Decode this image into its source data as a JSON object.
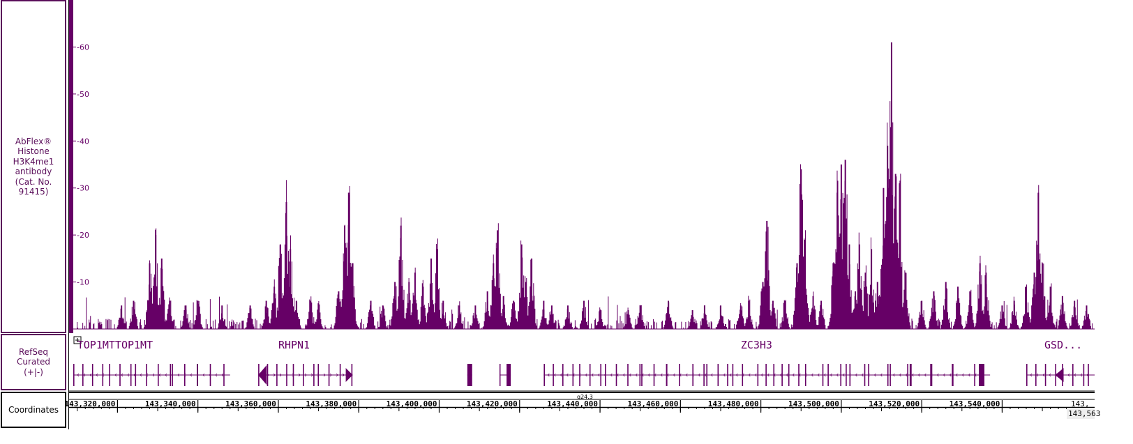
{
  "tracks": {
    "signal_label": "AbFlex® Histone H3K4me1 antibody (Cat. No. 91415)",
    "refseq_label": "RefSeq Curated (+|-)",
    "coords_label": "Coordinates"
  },
  "chart_data": {
    "type": "area",
    "title": "",
    "xlabel": "",
    "ylabel": "",
    "ylim": [
      0,
      70
    ],
    "y_ticks": [
      "10",
      "20",
      "30",
      "40",
      "50",
      "60"
    ],
    "xlim": [
      143309000,
      143563000
    ],
    "x_ticks": [
      "143,320,000",
      "143,340,000",
      "143,360,000",
      "143,380,000",
      "143,400,000",
      "143,420,000",
      "143,440,000",
      "143,460,000",
      "143,480,000",
      "143,500,000",
      "143,520,000",
      "143,540,000"
    ],
    "x_tick_values": [
      143320000,
      143340000,
      143360000,
      143380000,
      143400000,
      143420000,
      143440000,
      143460000,
      143480000,
      143500000,
      143520000,
      143540000
    ],
    "right_edge_label": "143,",
    "cursor_label": "143,563",
    "band_label": "q24.3",
    "color": "#660066",
    "peaks": [
      {
        "pos": 143321000,
        "h": 5
      },
      {
        "pos": 143324000,
        "h": 6
      },
      {
        "pos": 143328000,
        "h": 14
      },
      {
        "pos": 143329500,
        "h": 20
      },
      {
        "pos": 143331000,
        "h": 15
      },
      {
        "pos": 143333000,
        "h": 6
      },
      {
        "pos": 143337000,
        "h": 5
      },
      {
        "pos": 143340000,
        "h": 6
      },
      {
        "pos": 143346000,
        "h": 5
      },
      {
        "pos": 143353000,
        "h": 5
      },
      {
        "pos": 143357000,
        "h": 6
      },
      {
        "pos": 143359000,
        "h": 9
      },
      {
        "pos": 143360500,
        "h": 18
      },
      {
        "pos": 143362000,
        "h": 27
      },
      {
        "pos": 143363000,
        "h": 17
      },
      {
        "pos": 143364500,
        "h": 6
      },
      {
        "pos": 143368000,
        "h": 6
      },
      {
        "pos": 143370000,
        "h": 5
      },
      {
        "pos": 143375000,
        "h": 8
      },
      {
        "pos": 143376500,
        "h": 22
      },
      {
        "pos": 143377500,
        "h": 29
      },
      {
        "pos": 143378500,
        "h": 14
      },
      {
        "pos": 143383000,
        "h": 6
      },
      {
        "pos": 143386000,
        "h": 5
      },
      {
        "pos": 143389000,
        "h": 10
      },
      {
        "pos": 143390500,
        "h": 22
      },
      {
        "pos": 143392500,
        "h": 10
      },
      {
        "pos": 143394000,
        "h": 12
      },
      {
        "pos": 143396000,
        "h": 9
      },
      {
        "pos": 143398000,
        "h": 15
      },
      {
        "pos": 143399500,
        "h": 17
      },
      {
        "pos": 143401000,
        "h": 6
      },
      {
        "pos": 143405000,
        "h": 5
      },
      {
        "pos": 143409000,
        "h": 5
      },
      {
        "pos": 143412000,
        "h": 8
      },
      {
        "pos": 143413500,
        "h": 14
      },
      {
        "pos": 143414500,
        "h": 21
      },
      {
        "pos": 143416000,
        "h": 7
      },
      {
        "pos": 143418500,
        "h": 6
      },
      {
        "pos": 143420500,
        "h": 18
      },
      {
        "pos": 143421500,
        "h": 10
      },
      {
        "pos": 143423000,
        "h": 15
      },
      {
        "pos": 143426000,
        "h": 6
      },
      {
        "pos": 143428000,
        "h": 5
      },
      {
        "pos": 143432000,
        "h": 5
      },
      {
        "pos": 143436000,
        "h": 6
      },
      {
        "pos": 143440000,
        "h": 4
      },
      {
        "pos": 143447000,
        "h": 4
      },
      {
        "pos": 143450000,
        "h": 5
      },
      {
        "pos": 143457000,
        "h": 6
      },
      {
        "pos": 143463000,
        "h": 4
      },
      {
        "pos": 143466000,
        "h": 5
      },
      {
        "pos": 143470000,
        "h": 5
      },
      {
        "pos": 143475000,
        "h": 5
      },
      {
        "pos": 143477000,
        "h": 6
      },
      {
        "pos": 143480500,
        "h": 10
      },
      {
        "pos": 143481500,
        "h": 23
      },
      {
        "pos": 143483000,
        "h": 6
      },
      {
        "pos": 143486000,
        "h": 6
      },
      {
        "pos": 143489000,
        "h": 14
      },
      {
        "pos": 143490000,
        "h": 34
      },
      {
        "pos": 143491000,
        "h": 19
      },
      {
        "pos": 143493000,
        "h": 7
      },
      {
        "pos": 143495000,
        "h": 6
      },
      {
        "pos": 143498000,
        "h": 14
      },
      {
        "pos": 143499000,
        "h": 29
      },
      {
        "pos": 143500000,
        "h": 35
      },
      {
        "pos": 143501000,
        "h": 36
      },
      {
        "pos": 143502000,
        "h": 18
      },
      {
        "pos": 143503500,
        "h": 8
      },
      {
        "pos": 143504500,
        "h": 18
      },
      {
        "pos": 143506000,
        "h": 12
      },
      {
        "pos": 143507500,
        "h": 17
      },
      {
        "pos": 143509000,
        "h": 10
      },
      {
        "pos": 143510500,
        "h": 30
      },
      {
        "pos": 143511500,
        "h": 39
      },
      {
        "pos": 143512500,
        "h": 61
      },
      {
        "pos": 143513500,
        "h": 33
      },
      {
        "pos": 143514500,
        "h": 31
      },
      {
        "pos": 143516000,
        "h": 12
      },
      {
        "pos": 143520000,
        "h": 6
      },
      {
        "pos": 143523000,
        "h": 8
      },
      {
        "pos": 143526000,
        "h": 10
      },
      {
        "pos": 143529000,
        "h": 9
      },
      {
        "pos": 143532000,
        "h": 8
      },
      {
        "pos": 143534500,
        "h": 14
      },
      {
        "pos": 143536000,
        "h": 12
      },
      {
        "pos": 143540000,
        "h": 5
      },
      {
        "pos": 143543000,
        "h": 6
      },
      {
        "pos": 143546000,
        "h": 9
      },
      {
        "pos": 143548000,
        "h": 12
      },
      {
        "pos": 143549000,
        "h": 29
      },
      {
        "pos": 143550000,
        "h": 14
      },
      {
        "pos": 143552000,
        "h": 9
      },
      {
        "pos": 143555000,
        "h": 7
      },
      {
        "pos": 143558000,
        "h": 6
      },
      {
        "pos": 143561000,
        "h": 5
      }
    ]
  },
  "genes": [
    {
      "name": "TOP1MTTOP1MT",
      "start": 143309000,
      "end": 143348000,
      "label_pos": 143310000,
      "strand": "-"
    },
    {
      "name": "RHPN1",
      "start": 143355000,
      "end": 143378500,
      "label_pos": 143360000,
      "strand": "+"
    },
    {
      "name": "ZC3H3",
      "start": 143426000,
      "end": 143537000,
      "label_pos": 143475000,
      "strand": "-"
    },
    {
      "name": "GSD...",
      "start": 143546000,
      "end": 143563000,
      "label_pos": 143550500,
      "strand": "-"
    }
  ],
  "gene_fragments": [
    {
      "start": 143407000,
      "end": 143408200
    },
    {
      "start": 143415000,
      "end": 143417800
    }
  ]
}
